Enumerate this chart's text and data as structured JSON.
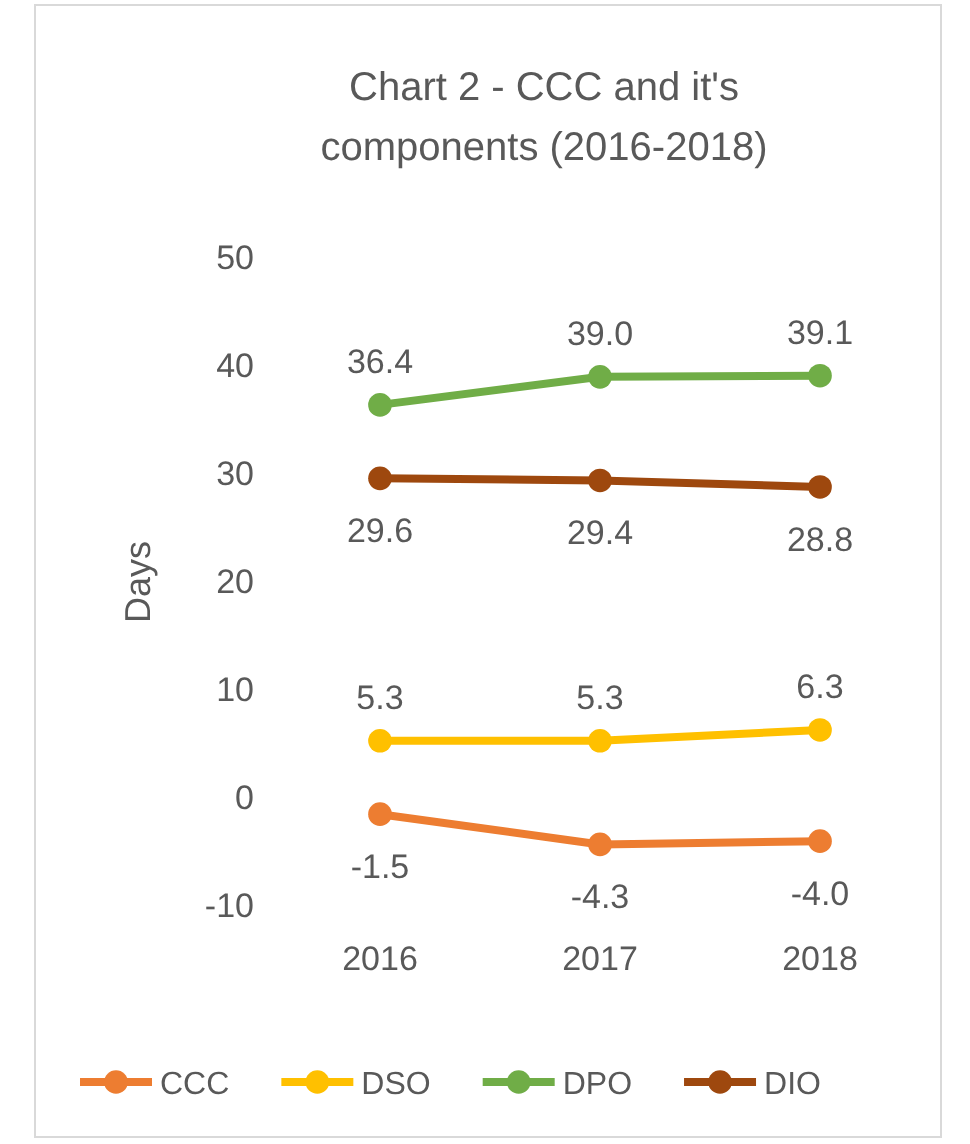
{
  "chart_data": {
    "type": "line",
    "title": "Chart 2 - CCC and it's components (2016-2018)",
    "ylabel": "Days",
    "categories": [
      "2016",
      "2017",
      "2018"
    ],
    "series": [
      {
        "name": "CCC",
        "color": "#ed7d31",
        "values": [
          -1.5,
          -4.3,
          -4.0
        ],
        "value_labels": [
          "-1.5",
          "-4.3",
          "-4.0"
        ]
      },
      {
        "name": "DSO",
        "color": "#ffc000",
        "values": [
          5.3,
          5.3,
          6.3
        ],
        "value_labels": [
          "5.3",
          "5.3",
          "6.3"
        ]
      },
      {
        "name": "DPO",
        "color": "#70ad47",
        "values": [
          36.4,
          39.0,
          39.1
        ],
        "value_labels": [
          "36.4",
          "39.0",
          "39.1"
        ]
      },
      {
        "name": "DIO",
        "color": "#9e480e",
        "values": [
          29.6,
          29.4,
          28.8
        ],
        "value_labels": [
          "29.6",
          "29.4",
          "28.8"
        ]
      }
    ],
    "ylim": [
      -10,
      50
    ],
    "yticks": [
      -10,
      0,
      10,
      20,
      30,
      40,
      50
    ],
    "legend": "bottom",
    "marker": "circle",
    "line_style": "solid"
  }
}
